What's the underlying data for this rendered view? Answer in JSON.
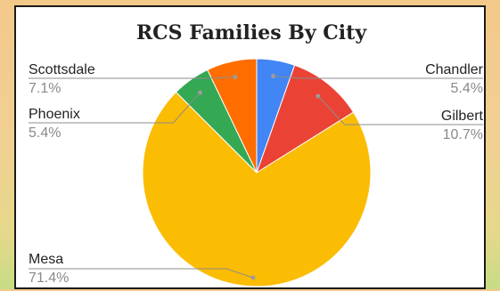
{
  "chart_data": {
    "type": "pie",
    "title": "RCS Families By City",
    "slices": [
      {
        "label": "Chandler",
        "value": 5.4,
        "value_label": "5.4%",
        "color": "#4285f4",
        "label_side": "right"
      },
      {
        "label": "Gilbert",
        "value": 10.7,
        "value_label": "10.7%",
        "color": "#ea4335",
        "label_side": "right"
      },
      {
        "label": "Mesa",
        "value": 71.4,
        "value_label": "71.4%",
        "color": "#fbbc04",
        "label_side": "left"
      },
      {
        "label": "Phoenix",
        "value": 5.4,
        "value_label": "5.4%",
        "color": "#34a853",
        "label_side": "left"
      },
      {
        "label": "Scottsdale",
        "value": 7.1,
        "value_label": "7.1%",
        "color": "#ff6d01",
        "label_side": "left"
      }
    ],
    "start_angle": "top",
    "direction": "clockwise",
    "legend": "none"
  }
}
